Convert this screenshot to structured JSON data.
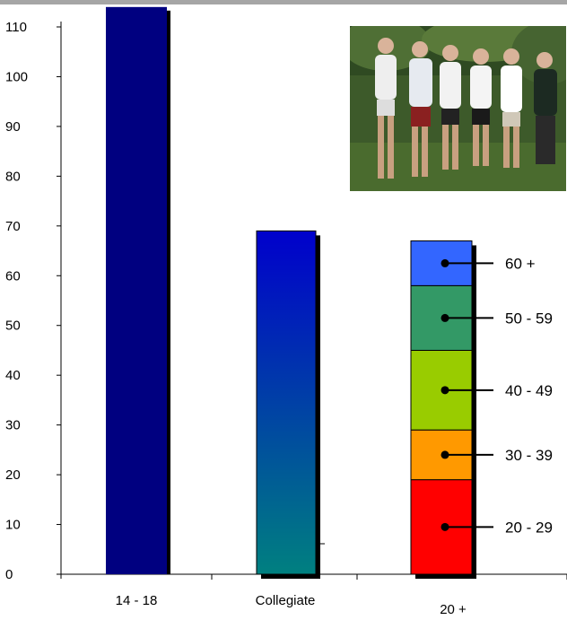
{
  "chart_data": {
    "type": "bar",
    "categories": [
      "14 - 18",
      "Collegiate",
      "20 +"
    ],
    "values": [
      114,
      69,
      67
    ],
    "ylim": [
      0,
      110
    ],
    "yticks": [
      0,
      10,
      20,
      30,
      40,
      50,
      60,
      70,
      80,
      90,
      100,
      110
    ],
    "ytick_labels": [
      "0",
      "10",
      "20",
      "30",
      "40",
      "50",
      "60",
      "70",
      "80",
      "90",
      "100",
      "110"
    ],
    "grid": false,
    "stack_for": "20 +",
    "segments": [
      {
        "label": "20 - 29",
        "value": 19,
        "color": "#ff0000"
      },
      {
        "label": "30 - 39",
        "value": 10,
        "color": "#ff9900"
      },
      {
        "label": "40 - 49",
        "value": 16,
        "color": "#99cc00"
      },
      {
        "label": "50 - 59",
        "value": 13,
        "color": "#339966"
      },
      {
        "label": "60 +",
        "value": 9,
        "color": "#3366ff"
      }
    ],
    "colors": {
      "bar_14_18": "#000080",
      "collegiate_top": "#0000cc",
      "collegiate_bottom": "#008080"
    }
  },
  "photo": {
    "description_icon": "group-photo-icon"
  }
}
